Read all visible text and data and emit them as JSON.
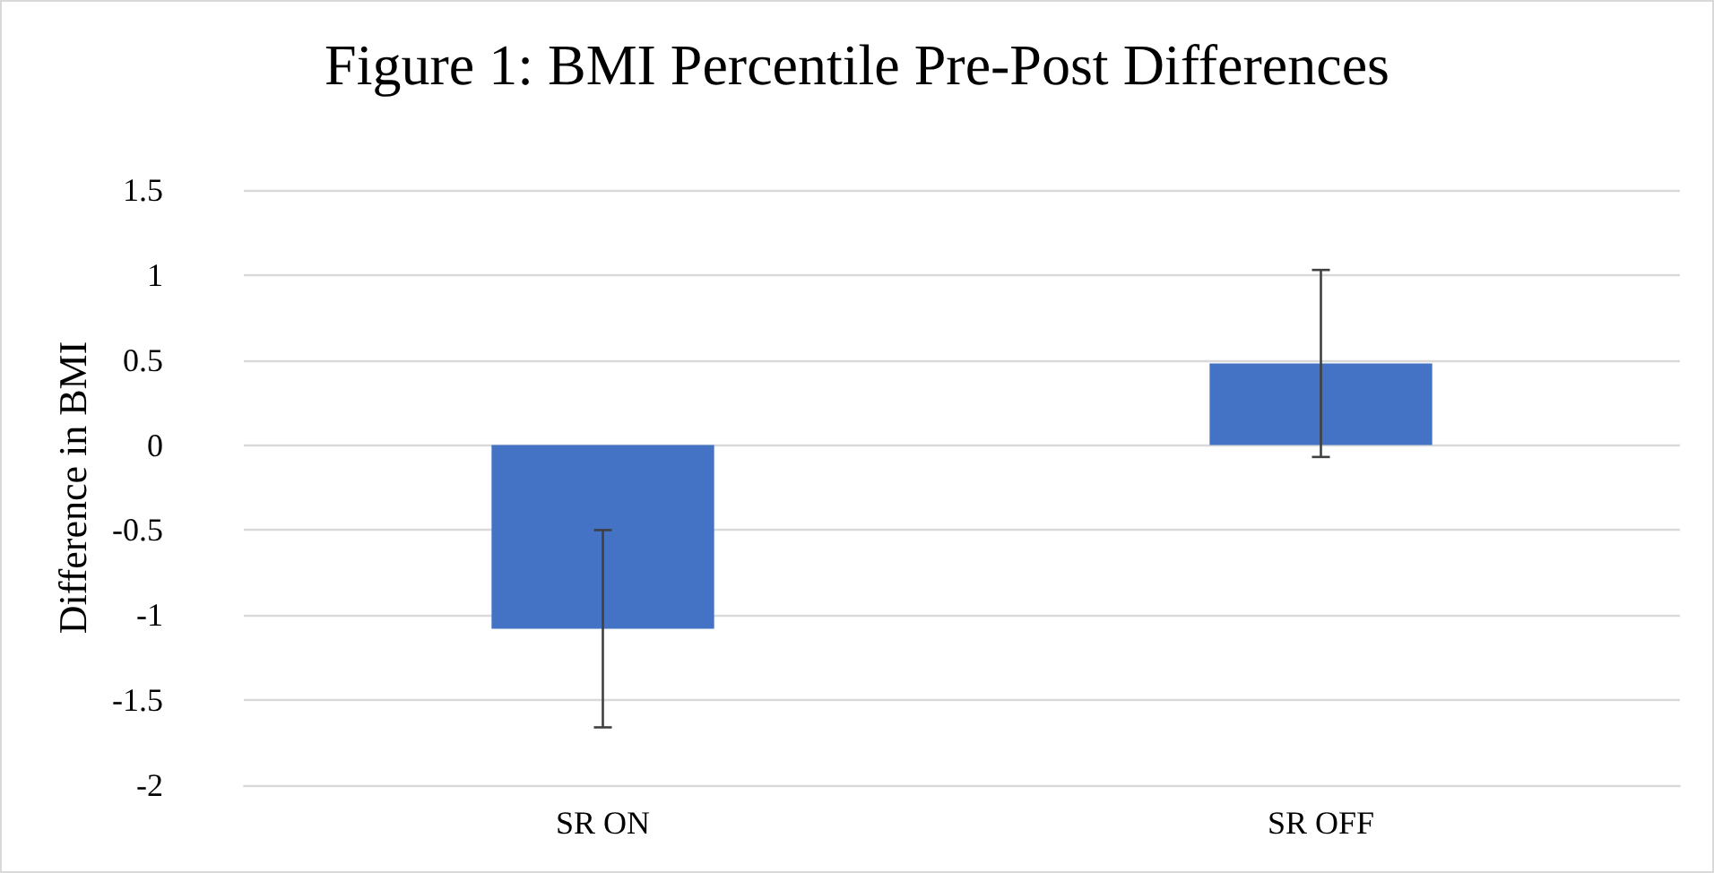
{
  "chart_data": {
    "type": "bar",
    "title": "Figure 1: BMI Percentile Pre-Post Differences",
    "ylabel": "Difference in BMI",
    "categories": [
      "SR ON",
      "SR OFF"
    ],
    "series": [
      {
        "color": "#4472c4",
        "values": [
          -1.08,
          0.48
        ],
        "errors": [
          0.58,
          0.55
        ]
      }
    ],
    "ylim": [
      -2,
      1.5
    ],
    "yticks": [
      -2,
      -1.5,
      -1,
      -0.5,
      0,
      0.5,
      1,
      1.5
    ],
    "grid": "y"
  }
}
